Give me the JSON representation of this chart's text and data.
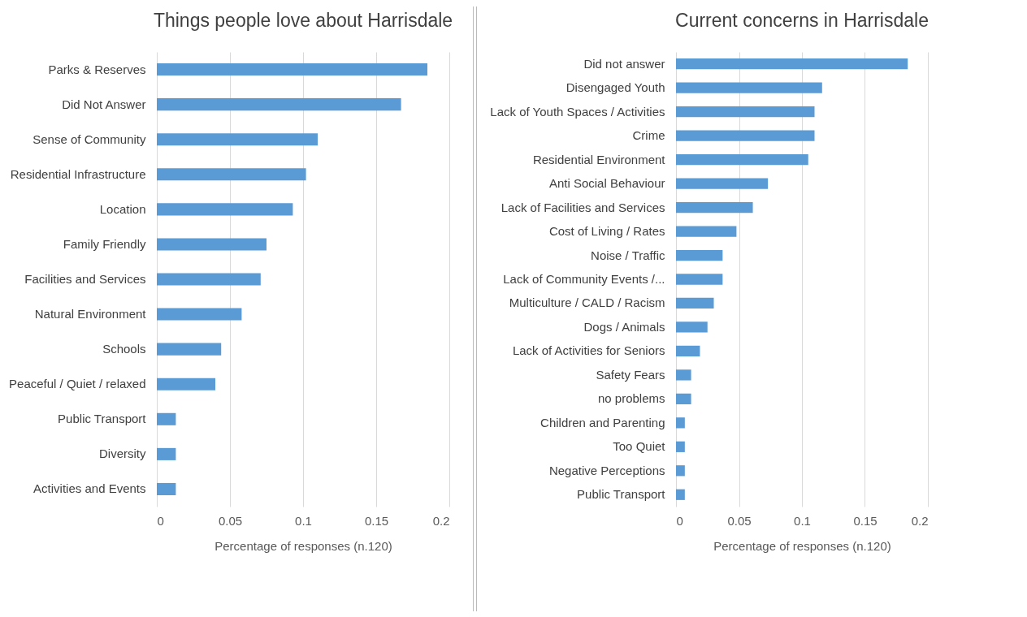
{
  "chart_data": [
    {
      "type": "bar",
      "orientation": "horizontal",
      "title": "Things people love about Harrisdale",
      "xlabel": "Percentage of responses (n.120)",
      "categories": [
        "Parks & Reserves",
        "Did Not Answer",
        "Sense of Community",
        "Residential Infrastructure",
        "Location",
        "Family Friendly",
        "Facilities and Services",
        "Natural Environment",
        "Schools",
        "Peaceful / Quiet / relaxed",
        "Public Transport",
        "Diversity",
        "Activities and Events"
      ],
      "values": [
        0.185,
        0.167,
        0.11,
        0.102,
        0.093,
        0.075,
        0.071,
        0.058,
        0.044,
        0.04,
        0.013,
        0.013,
        0.013
      ],
      "color": "#5b9bd5",
      "xlim": [
        0,
        0.2
      ],
      "xticks": [
        0,
        0.05,
        0.1,
        0.15,
        0.2
      ],
      "grid": "x"
    },
    {
      "type": "bar",
      "orientation": "horizontal",
      "title": "Current concerns in Harrisdale",
      "xlabel": "Percentage of responses (n.120)",
      "categories": [
        "Did not answer",
        "Disengaged Youth",
        "Lack of Youth Spaces / Activities",
        "Crime",
        "Residential Environment",
        "Anti Social Behaviour",
        "Lack of Facilities and Services",
        "Cost of Living / Rates",
        "Noise / Traffic",
        "Lack of Community Events /...",
        "Multiculture / CALD / Racism",
        "Dogs / Animals",
        "Lack of Activities for Seniors",
        "Safety Fears",
        "no problems",
        "Children and Parenting",
        "Too Quiet",
        "Negative Perceptions",
        "Public Transport"
      ],
      "values": [
        0.184,
        0.116,
        0.11,
        0.11,
        0.105,
        0.073,
        0.061,
        0.048,
        0.037,
        0.037,
        0.03,
        0.025,
        0.019,
        0.012,
        0.012,
        0.007,
        0.007,
        0.007,
        0.007
      ],
      "color": "#5b9bd5",
      "xlim": [
        0,
        0.2
      ],
      "xticks": [
        0,
        0.05,
        0.1,
        0.15,
        0.2
      ],
      "grid": "x"
    }
  ]
}
